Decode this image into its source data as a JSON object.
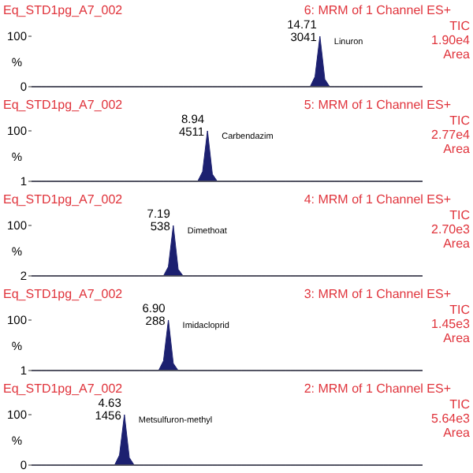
{
  "chart_data": [
    {
      "type": "area",
      "title": "Eq_STD1pg_A7_002",
      "subtitle": "6: MRM of 1 Channel ES+",
      "ylabel": "%",
      "categories": [
        null,
        null,
        null,
        null,
        null,
        null,
        null,
        null,
        null,
        null,
        null,
        null,
        null,
        null,
        null,
        null,
        null,
        null,
        null,
        null,
        null,
        null,
        null,
        null,
        null,
        null,
        null,
        null,
        null,
        null,
        null,
        null,
        null,
        null,
        null,
        null,
        null,
        null,
        null,
        null,
        null,
        null,
        null,
        null,
        null,
        null,
        null,
        null,
        null,
        null,
        null,
        null,
        null,
        null,
        null,
        null,
        null,
        null,
        null,
        null,
        null,
        null,
        null,
        null,
        null,
        null,
        null,
        null,
        null,
        null,
        null,
        null,
        null,
        null,
        null,
        null,
        null,
        null,
        null,
        null,
        null
      ],
      "ylim": [
        0,
        100
      ],
      "yticks": [
        0,
        100
      ],
      "series": [
        {
          "color": "#1c2070",
          "values": [
            0,
            0,
            0,
            0,
            0,
            0,
            0,
            0,
            0,
            0,
            0,
            0,
            0,
            0,
            0,
            0,
            0,
            0,
            0,
            0,
            0,
            0,
            0,
            0,
            0,
            0,
            0,
            0,
            0,
            0,
            0,
            0,
            0,
            0,
            0,
            0,
            0,
            0,
            0,
            0,
            0,
            0,
            0,
            0,
            0,
            0,
            0,
            0,
            0,
            0,
            0,
            0,
            0,
            0,
            0,
            0,
            0,
            0,
            20,
            100,
            15,
            0,
            0,
            0,
            0,
            0,
            0,
            0,
            0,
            0,
            0,
            0,
            0,
            0,
            0,
            0,
            0,
            0,
            0,
            0,
            0
          ]
        }
      ],
      "annotations": [
        "TIC",
        "1.90e4",
        "Area",
        "14.71",
        "3041",
        "Linuron"
      ]
    },
    {
      "type": "area",
      "title": "Eq_STD1pg_A7_002",
      "subtitle": "5: MRM of 1 Channel ES+",
      "ylabel": "%",
      "categories": [
        null,
        null,
        null,
        null,
        null,
        null,
        null,
        null,
        null,
        null,
        null,
        null,
        null,
        null,
        null,
        null,
        null,
        null,
        null,
        null,
        null,
        null,
        null,
        null,
        null,
        null,
        null,
        null,
        null,
        null,
        null,
        null,
        null,
        null,
        null,
        null,
        null,
        null,
        null,
        null,
        null,
        null,
        null,
        null,
        null,
        null,
        null,
        null,
        null,
        null,
        null,
        null,
        null,
        null,
        null,
        null,
        null,
        null,
        null,
        null,
        null,
        null,
        null,
        null,
        null,
        null,
        null,
        null,
        null,
        null,
        null,
        null,
        null,
        null,
        null,
        null,
        null,
        null,
        null,
        null,
        null
      ],
      "ylim": [
        1,
        100
      ],
      "yticks": [
        1,
        100
      ],
      "series": [
        {
          "color": "#1c2070",
          "values": [
            1,
            1,
            1,
            1,
            1,
            1,
            1,
            1,
            1,
            1,
            1,
            1,
            1,
            1,
            1,
            1,
            1,
            1,
            1,
            1,
            1,
            1,
            1,
            1,
            1,
            1,
            1,
            1,
            1,
            1,
            1,
            1,
            1,
            1,
            1,
            20,
            100,
            15,
            1,
            1,
            1,
            1,
            1,
            1,
            1,
            1,
            1,
            1,
            1,
            1,
            1,
            1,
            1,
            1,
            1,
            1,
            1,
            1,
            1,
            1,
            1,
            1,
            1,
            1,
            1,
            1,
            1,
            1,
            1,
            1,
            1,
            1,
            1,
            1,
            1,
            1,
            1,
            1,
            1,
            1,
            1
          ]
        }
      ],
      "annotations": [
        "TIC",
        "2.77e4",
        "Area",
        "8.94",
        "4511",
        "Carbendazim"
      ]
    },
    {
      "type": "area",
      "title": "Eq_STD1pg_A7_002",
      "subtitle": "4: MRM of 1 Channel ES+",
      "ylabel": "%",
      "categories": [
        null,
        null,
        null,
        null,
        null,
        null,
        null,
        null,
        null,
        null,
        null,
        null,
        null,
        null,
        null,
        null,
        null,
        null,
        null,
        null,
        null,
        null,
        null,
        null,
        null,
        null,
        null,
        null,
        null,
        null,
        null,
        null,
        null,
        null,
        null,
        null,
        null,
        null,
        null,
        null,
        null,
        null,
        null,
        null,
        null,
        null,
        null,
        null,
        null,
        null,
        null,
        null,
        null,
        null,
        null,
        null,
        null,
        null,
        null,
        null,
        null,
        null,
        null,
        null,
        null,
        null,
        null,
        null,
        null,
        null,
        null,
        null,
        null,
        null,
        null,
        null,
        null,
        null,
        null,
        null,
        null
      ],
      "ylim": [
        2,
        100
      ],
      "yticks": [
        2,
        100
      ],
      "series": [
        {
          "color": "#1c2070",
          "values": [
            2,
            2,
            2,
            2,
            2,
            2,
            2,
            2,
            2,
            2,
            2,
            2,
            2,
            2,
            2,
            2,
            2,
            2,
            2,
            2,
            2,
            2,
            2,
            2,
            2,
            2,
            2,
            2,
            20,
            100,
            15,
            2,
            2,
            2,
            2,
            2,
            2,
            2,
            2,
            2,
            2,
            2,
            2,
            2,
            2,
            2,
            2,
            2,
            2,
            2,
            2,
            2,
            2,
            2,
            2,
            2,
            2,
            2,
            2,
            2,
            2,
            2,
            2,
            2,
            2,
            2,
            2,
            2,
            2,
            2,
            2,
            2,
            2,
            2,
            2,
            2,
            2,
            2,
            2,
            2,
            2
          ]
        }
      ],
      "annotations": [
        "TIC",
        "2.70e3",
        "Area",
        "7.19",
        "538",
        "Dimethoat"
      ]
    },
    {
      "type": "area",
      "title": "Eq_STD1pg_A7_002",
      "subtitle": "3: MRM of 1 Channel ES+",
      "ylabel": "%",
      "categories": [
        null,
        null,
        null,
        null,
        null,
        null,
        null,
        null,
        null,
        null,
        null,
        null,
        null,
        null,
        null,
        null,
        null,
        null,
        null,
        null,
        null,
        null,
        null,
        null,
        null,
        null,
        null,
        null,
        null,
        null,
        null,
        null,
        null,
        null,
        null,
        null,
        null,
        null,
        null,
        null,
        null,
        null,
        null,
        null,
        null,
        null,
        null,
        null,
        null,
        null,
        null,
        null,
        null,
        null,
        null,
        null,
        null,
        null,
        null,
        null,
        null,
        null,
        null,
        null,
        null,
        null,
        null,
        null,
        null,
        null,
        null,
        null,
        null,
        null,
        null,
        null,
        null,
        null,
        null,
        null,
        null
      ],
      "ylim": [
        1,
        100
      ],
      "yticks": [
        1,
        100
      ],
      "series": [
        {
          "color": "#1c2070",
          "values": [
            1,
            1,
            1,
            1,
            1,
            1,
            1,
            1,
            1,
            1,
            1,
            1,
            1,
            1,
            1,
            1,
            1,
            1,
            1,
            1,
            1,
            1,
            1,
            1,
            1,
            1,
            1,
            20,
            100,
            15,
            1,
            1,
            1,
            1,
            1,
            1,
            1,
            1,
            1,
            1,
            1,
            1,
            1,
            1,
            1,
            1,
            1,
            1,
            1,
            1,
            1,
            1,
            1,
            1,
            1,
            1,
            1,
            1,
            1,
            1,
            1,
            1,
            1,
            1,
            1,
            1,
            1,
            1,
            1,
            1,
            1,
            1,
            1,
            1,
            1,
            1,
            1,
            1,
            1,
            1,
            1
          ]
        }
      ],
      "annotations": [
        "TIC",
        "1.45e3",
        "Area",
        "6.90",
        "288",
        "Imidacloprid"
      ]
    },
    {
      "type": "area",
      "title": "Eq_STD1pg_A7_002",
      "subtitle": "2: MRM of 1 Channel ES+",
      "ylabel": "%",
      "categories": [
        null,
        null,
        null,
        null,
        null,
        null,
        null,
        null,
        null,
        null,
        null,
        null,
        null,
        null,
        null,
        null,
        null,
        null,
        null,
        null,
        null,
        null,
        null,
        null,
        null,
        null,
        null,
        null,
        null,
        null,
        null,
        null,
        null,
        null,
        null,
        null,
        null,
        null,
        null,
        null,
        null,
        null,
        null,
        null,
        null,
        null,
        null,
        null,
        null,
        null,
        null,
        null,
        null,
        null,
        null,
        null,
        null,
        null,
        null,
        null,
        null,
        null,
        null,
        null,
        null,
        null,
        null,
        null,
        null,
        null,
        null,
        null,
        null,
        null,
        null,
        null,
        null,
        null,
        null,
        null,
        null
      ],
      "ylim": [
        0,
        100
      ],
      "yticks": [
        0,
        100
      ],
      "series": [
        {
          "color": "#1c2070",
          "values": [
            0,
            0,
            0,
            0,
            0,
            0,
            0,
            0,
            0,
            0,
            0,
            0,
            0,
            0,
            0,
            0,
            0,
            0,
            20,
            100,
            15,
            0,
            0,
            0,
            0,
            0,
            0,
            0,
            0,
            0,
            0,
            0,
            0,
            0,
            0,
            0,
            0,
            0,
            0,
            0,
            0,
            0,
            0,
            0,
            0,
            0,
            0,
            0,
            0,
            0,
            0,
            0,
            0,
            0,
            0,
            0,
            0,
            0,
            0,
            0,
            0,
            0,
            0,
            0,
            0,
            0,
            0,
            0,
            0,
            0,
            0,
            0,
            0,
            0,
            0,
            0,
            0,
            0,
            0,
            0,
            0
          ]
        }
      ],
      "annotations": [
        "TIC",
        "5.64e3",
        "Area",
        "4.63",
        "1456",
        "Metsulfuron-methyl"
      ]
    }
  ]
}
